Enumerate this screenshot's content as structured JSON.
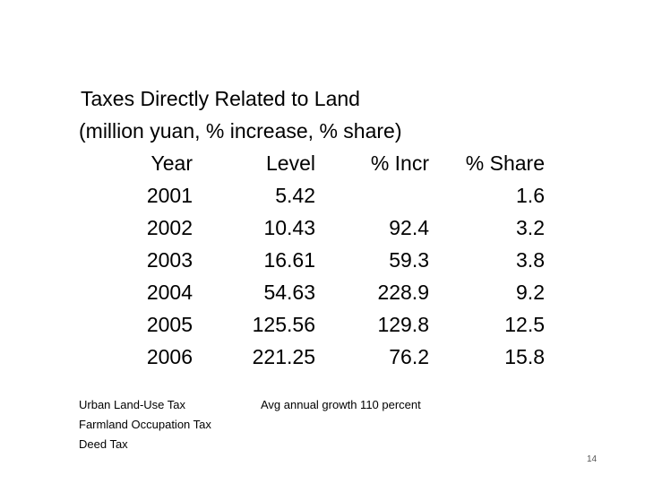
{
  "title": {
    "line1": "Taxes Directly Related to Land",
    "line2": "(million yuan, % increase, % share)"
  },
  "table": {
    "headers": {
      "year": "Year",
      "level": "Level",
      "incr": "% Incr",
      "share": "% Share"
    },
    "rows": [
      {
        "year": "2001",
        "level": "5.42",
        "incr": "",
        "share": "1.6"
      },
      {
        "year": "2002",
        "level": "10.43",
        "incr": "92.4",
        "share": "3.2"
      },
      {
        "year": "2003",
        "level": "16.61",
        "incr": "59.3",
        "share": "3.8"
      },
      {
        "year": "2004",
        "level": "54.63",
        "incr": "228.9",
        "share": "9.2"
      },
      {
        "year": "2005",
        "level": "125.56",
        "incr": "129.8",
        "share": "12.5"
      },
      {
        "year": "2006",
        "level": "221.25",
        "incr": "76.2",
        "share": "15.8"
      }
    ]
  },
  "notes": [
    "Urban Land-Use Tax",
    "Farmland Occupation Tax",
    "Deed Tax"
  ],
  "growth_note": "Avg annual growth 110 percent",
  "page_number": "14"
}
